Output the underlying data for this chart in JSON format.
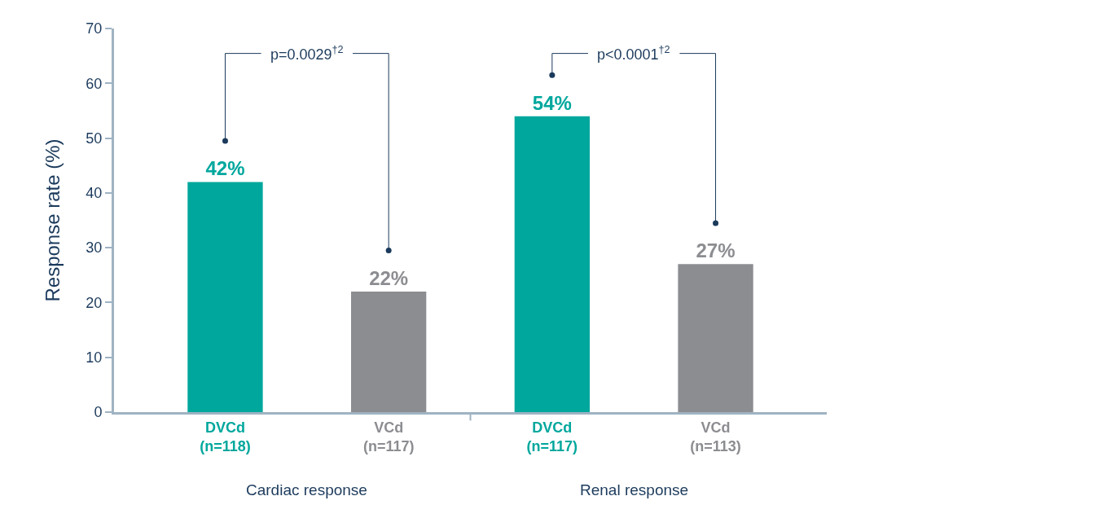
{
  "chart_data": {
    "type": "bar",
    "ylabel": "Response rate (%)",
    "categories": [
      "DVCd\n(n=118)",
      "VCd\n(n=117)",
      "DVCd\n(n=117)",
      "VCd\n(n=113)"
    ],
    "values": [
      42,
      22,
      54,
      27
    ],
    "colors": [
      "#00a79d",
      "#8c8d91",
      "#00a79d",
      "#8c8d91"
    ],
    "value_labels": [
      "42%",
      "22%",
      "54%",
      "27%"
    ],
    "ylim": [
      0,
      70
    ],
    "yticks": [
      0,
      10,
      20,
      30,
      40,
      50,
      60,
      70
    ],
    "annotations": [
      "p=0.0029$^{†2}$",
      "p<0.0001$^{†2}$",
      "Cardiac response",
      "Renal response"
    ]
  }
}
